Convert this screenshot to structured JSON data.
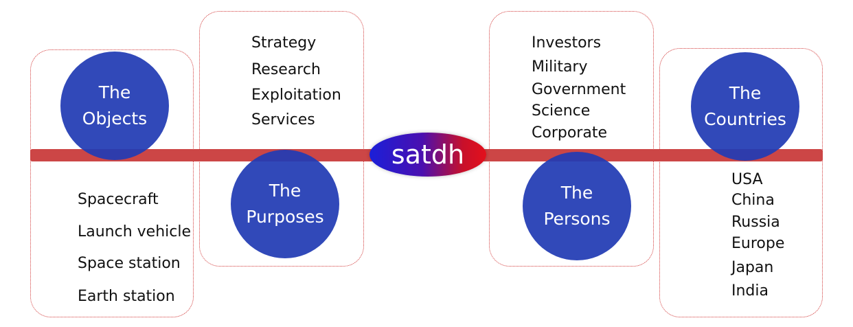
{
  "logo": {
    "text": "satdh"
  },
  "nodes": {
    "objects": {
      "line1": "The",
      "line2": "Objects"
    },
    "purposes": {
      "line1": "The",
      "line2": "Purposes"
    },
    "persons": {
      "line1": "The",
      "line2": "Persons"
    },
    "countries": {
      "line1": "The",
      "line2": "Countries"
    }
  },
  "lists": {
    "objects": [
      "Spacecraft",
      "Launch vehicle",
      "Space station",
      "Earth station"
    ],
    "purposes": [
      "Strategy",
      "Research",
      "Exploitation",
      "Services"
    ],
    "persons": [
      "Investors",
      "Military",
      "Government",
      "Science",
      "Corporate"
    ],
    "countries": [
      "USA",
      "China",
      "Russia",
      "Europe",
      "Japan",
      "India"
    ]
  },
  "colors": {
    "bar": "#cc4646",
    "circle": "#213bb4",
    "frame": "#d23a3a"
  }
}
